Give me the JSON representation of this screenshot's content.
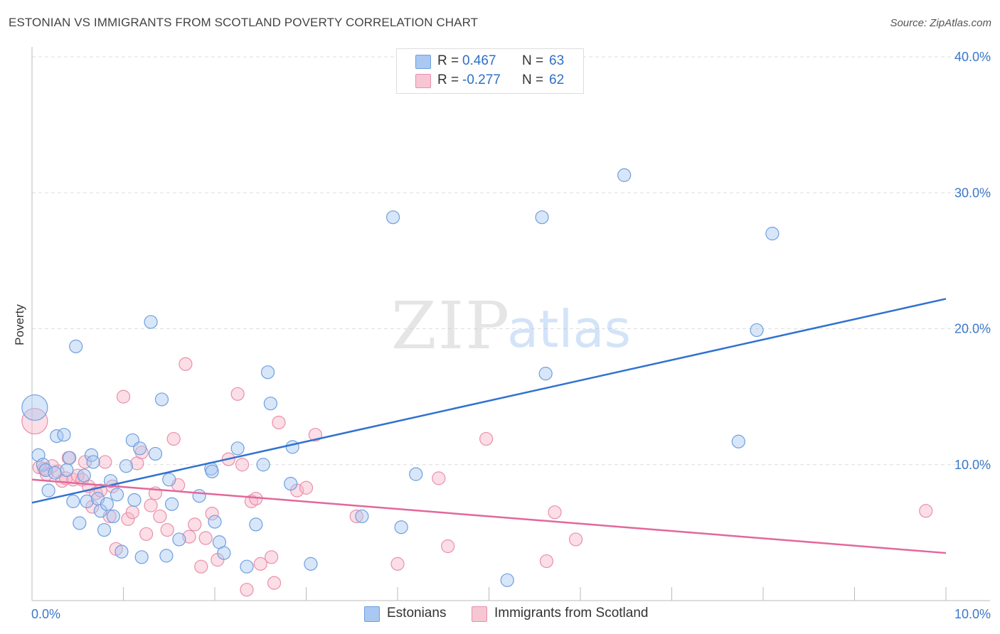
{
  "header": {
    "title": "ESTONIAN VS IMMIGRANTS FROM SCOTLAND POVERTY CORRELATION CHART",
    "source": "Source: ZipAtlas.com"
  },
  "watermark": {
    "zip": "ZIP",
    "atlas": "atlas"
  },
  "legend": {
    "rows": [
      {
        "r_label": "R =",
        "r_value": "0.467",
        "n_label": "N =",
        "n_value": "63",
        "color": "#a9c8f2"
      },
      {
        "r_label": "R =",
        "r_value": "-0.277",
        "n_label": "N =",
        "n_value": "62",
        "color": "#f6b5c8"
      }
    ]
  },
  "bottom_legend": {
    "estonians": "Estonians",
    "scotland": "Immigrants from Scotland"
  },
  "colors": {
    "blue_fill": "#a9c8f2",
    "blue_stroke": "#6f9fde",
    "blue_line": "#2f72d0",
    "pink_fill": "#f6b5c8",
    "pink_stroke": "#ea8fab",
    "pink_line": "#e2689a",
    "grid": "#dddddd",
    "tick_text": "#3b78c9"
  },
  "chart_data": {
    "type": "scatter",
    "title": "ESTONIAN VS IMMIGRANTS FROM SCOTLAND POVERTY CORRELATION CHART",
    "xlabel": "",
    "ylabel": "Poverty",
    "xlim": [
      0,
      10
    ],
    "ylim": [
      0,
      40
    ],
    "x_tick_labels": [
      "0.0%",
      "10.0%"
    ],
    "y_tick_labels": [
      "10.0%",
      "20.0%",
      "30.0%",
      "40.0%"
    ],
    "y_ticks": [
      10,
      20,
      30,
      40
    ],
    "grid": true,
    "legend_position": "top-center",
    "series": [
      {
        "name": "Estonians",
        "r": 0.467,
        "n": 63,
        "trend": {
          "x": [
            0,
            10
          ],
          "y": [
            7.2,
            22.2
          ]
        },
        "points": [
          [
            0.03,
            14.2,
            "L"
          ],
          [
            0.07,
            10.7
          ],
          [
            0.12,
            10.0
          ],
          [
            0.18,
            8.1
          ],
          [
            0.27,
            12.1
          ],
          [
            0.35,
            12.2
          ],
          [
            0.15,
            9.6
          ],
          [
            0.25,
            9.4
          ],
          [
            0.38,
            9.6
          ],
          [
            0.41,
            10.5
          ],
          [
            0.45,
            7.3
          ],
          [
            0.48,
            18.7
          ],
          [
            0.52,
            5.7
          ],
          [
            0.57,
            9.2
          ],
          [
            0.6,
            7.3
          ],
          [
            0.65,
            10.7
          ],
          [
            0.67,
            10.2
          ],
          [
            0.72,
            7.5
          ],
          [
            0.75,
            6.6
          ],
          [
            0.79,
            5.2
          ],
          [
            0.82,
            7.1
          ],
          [
            0.86,
            8.8
          ],
          [
            0.89,
            6.2
          ],
          [
            0.93,
            7.8
          ],
          [
            0.98,
            3.6
          ],
          [
            1.03,
            9.9
          ],
          [
            1.1,
            11.8
          ],
          [
            1.12,
            7.4
          ],
          [
            1.18,
            11.2
          ],
          [
            1.2,
            3.2
          ],
          [
            1.3,
            20.5
          ],
          [
            1.35,
            10.8
          ],
          [
            1.42,
            14.8
          ],
          [
            1.47,
            3.3
          ],
          [
            1.5,
            8.9
          ],
          [
            1.53,
            7.1
          ],
          [
            1.61,
            4.5
          ],
          [
            1.83,
            7.7
          ],
          [
            1.96,
            9.7
          ],
          [
            1.97,
            9.5
          ],
          [
            2.0,
            5.8
          ],
          [
            2.05,
            4.3
          ],
          [
            2.1,
            3.5
          ],
          [
            2.25,
            11.2
          ],
          [
            2.35,
            2.5
          ],
          [
            2.45,
            5.6
          ],
          [
            2.53,
            10.0
          ],
          [
            2.58,
            16.8
          ],
          [
            2.61,
            14.5
          ],
          [
            2.83,
            8.6
          ],
          [
            2.85,
            11.3
          ],
          [
            3.05,
            2.7
          ],
          [
            3.61,
            6.2
          ],
          [
            3.95,
            28.2
          ],
          [
            4.04,
            5.4
          ],
          [
            4.2,
            9.3
          ],
          [
            5.2,
            1.5
          ],
          [
            5.58,
            28.2
          ],
          [
            5.62,
            16.7
          ],
          [
            6.48,
            31.3
          ],
          [
            7.73,
            11.7
          ],
          [
            7.93,
            19.9
          ],
          [
            8.1,
            27.0
          ]
        ]
      },
      {
        "name": "Immigrants from Scotland",
        "r": -0.277,
        "n": 62,
        "trend": {
          "x": [
            0,
            10
          ],
          "y": [
            8.9,
            3.5
          ]
        },
        "points": [
          [
            0.03,
            13.2,
            "L"
          ],
          [
            0.08,
            9.8
          ],
          [
            0.13,
            9.7
          ],
          [
            0.16,
            9.3
          ],
          [
            0.22,
            9.9
          ],
          [
            0.28,
            9.5
          ],
          [
            0.33,
            8.8
          ],
          [
            0.37,
            9.0
          ],
          [
            0.4,
            10.5
          ],
          [
            0.45,
            8.9
          ],
          [
            0.5,
            9.2
          ],
          [
            0.55,
            8.9
          ],
          [
            0.58,
            10.2
          ],
          [
            0.62,
            8.4
          ],
          [
            0.66,
            6.9
          ],
          [
            0.7,
            7.9
          ],
          [
            0.75,
            8.1
          ],
          [
            0.8,
            10.2
          ],
          [
            0.85,
            6.2
          ],
          [
            0.88,
            8.4
          ],
          [
            0.92,
            3.8
          ],
          [
            1.0,
            15.0
          ],
          [
            1.05,
            6.0
          ],
          [
            1.1,
            6.5
          ],
          [
            1.15,
            10.1
          ],
          [
            1.2,
            10.9
          ],
          [
            1.25,
            4.9
          ],
          [
            1.3,
            7.0
          ],
          [
            1.35,
            7.9
          ],
          [
            1.4,
            6.2
          ],
          [
            1.48,
            5.2
          ],
          [
            1.55,
            11.9
          ],
          [
            1.6,
            8.5
          ],
          [
            1.68,
            17.4
          ],
          [
            1.72,
            4.7
          ],
          [
            1.78,
            5.6
          ],
          [
            1.85,
            2.5
          ],
          [
            1.9,
            4.6
          ],
          [
            1.97,
            6.4
          ],
          [
            2.03,
            3.0
          ],
          [
            2.15,
            10.4
          ],
          [
            2.25,
            15.2
          ],
          [
            2.3,
            10.0
          ],
          [
            2.35,
            0.8
          ],
          [
            2.4,
            7.3
          ],
          [
            2.45,
            7.5
          ],
          [
            2.5,
            2.7
          ],
          [
            2.62,
            3.2
          ],
          [
            2.65,
            1.3
          ],
          [
            2.7,
            13.1
          ],
          [
            2.9,
            8.1
          ],
          [
            3.0,
            8.3
          ],
          [
            3.1,
            12.2
          ],
          [
            3.55,
            6.2
          ],
          [
            4.0,
            2.7
          ],
          [
            4.45,
            9.0
          ],
          [
            4.55,
            4.0
          ],
          [
            4.97,
            11.9
          ],
          [
            5.63,
            2.9
          ],
          [
            5.72,
            6.5
          ],
          [
            5.95,
            4.5
          ],
          [
            9.78,
            6.6
          ]
        ]
      }
    ]
  }
}
